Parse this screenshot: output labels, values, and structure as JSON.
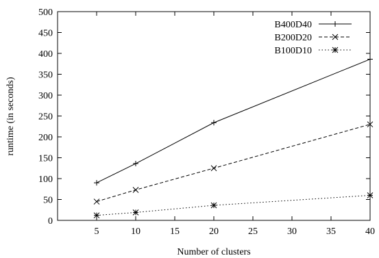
{
  "chart_data": {
    "type": "line",
    "title": "",
    "xlabel": "Number of clusters",
    "ylabel": "runtime (in seconds)",
    "xlim": [
      0,
      40
    ],
    "ylim": [
      0,
      500
    ],
    "x_ticks": [
      "5",
      "10",
      "15",
      "20",
      "25",
      "30",
      "35",
      "40"
    ],
    "y_ticks": [
      "0",
      "50",
      "100",
      "150",
      "200",
      "250",
      "300",
      "350",
      "400",
      "450",
      "500"
    ],
    "grid": false,
    "legend_position": "top-right",
    "x": [
      5,
      10,
      20,
      40
    ],
    "series": [
      {
        "name": "B400D40",
        "values": [
          90,
          136,
          234,
          386
        ],
        "marker": "plus",
        "dash": "solid"
      },
      {
        "name": "B200D20",
        "values": [
          45,
          73,
          125,
          230
        ],
        "marker": "cross",
        "dash": "dashed"
      },
      {
        "name": "B100D10",
        "values": [
          12,
          19,
          36,
          60
        ],
        "marker": "star",
        "dash": "dotted"
      }
    ],
    "line_color": "#000000"
  }
}
